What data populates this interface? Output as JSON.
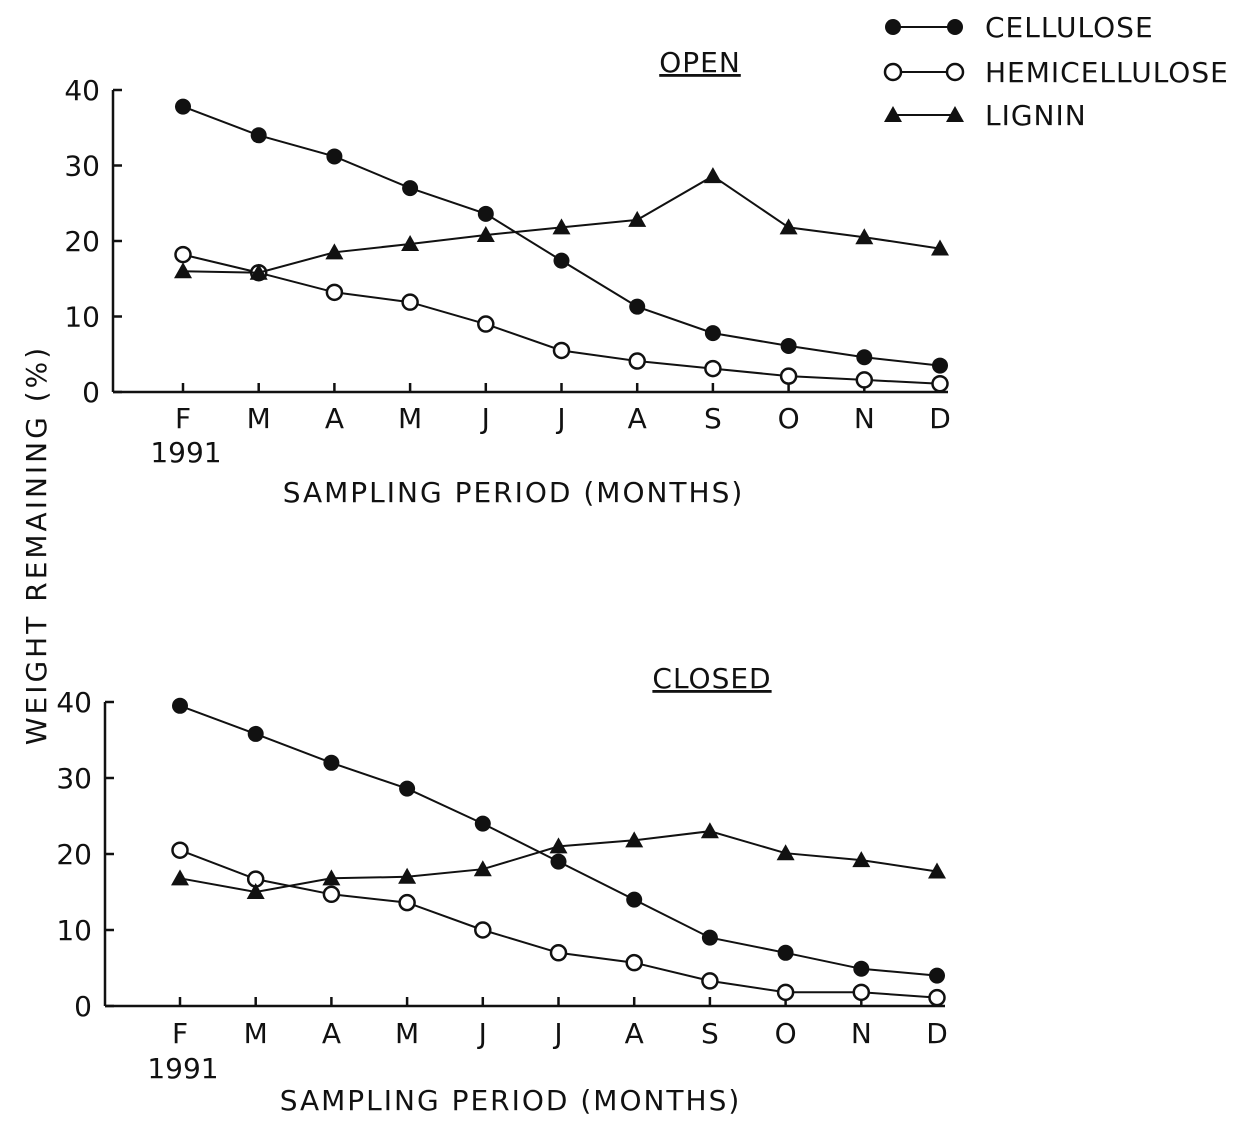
{
  "chart_data": [
    {
      "type": "line",
      "panel_title": "OPEN",
      "categories": [
        "F",
        "M",
        "A",
        "M",
        "J",
        "J",
        "A",
        "S",
        "O",
        "N",
        "D"
      ],
      "year_label": "1991",
      "xlabel": "SAMPLING PERIOD (MONTHS)",
      "ylabel": "WEIGHT REMAINING (%)",
      "ylim": [
        0,
        40
      ],
      "yticks": [
        0,
        10,
        20,
        30,
        40
      ],
      "grid": false,
      "series": [
        {
          "name": "CELLULOSE",
          "marker": "filled-circle",
          "values": [
            37.8,
            34.0,
            31.2,
            27.0,
            23.6,
            17.4,
            11.3,
            7.8,
            6.1,
            4.6,
            3.5
          ]
        },
        {
          "name": "HEMICELLULOSE",
          "marker": "open-circle",
          "values": [
            18.2,
            15.8,
            13.2,
            11.9,
            9.0,
            5.5,
            4.1,
            3.1,
            2.1,
            1.6,
            1.1
          ]
        },
        {
          "name": "LIGNIN",
          "marker": "filled-triangle",
          "values": [
            16.0,
            15.8,
            18.5,
            19.6,
            20.8,
            21.8,
            22.8,
            28.6,
            21.8,
            20.5,
            19.0
          ]
        }
      ]
    },
    {
      "type": "line",
      "panel_title": "CLOSED",
      "categories": [
        "F",
        "M",
        "A",
        "M",
        "J",
        "J",
        "A",
        "S",
        "O",
        "N",
        "D"
      ],
      "year_label": "1991",
      "xlabel": "SAMPLING PERIOD (MONTHS)",
      "ylim": [
        0,
        40
      ],
      "yticks": [
        0,
        10,
        20,
        30,
        40
      ],
      "grid": false,
      "series": [
        {
          "name": "CELLULOSE",
          "marker": "filled-circle",
          "values": [
            39.5,
            35.8,
            32.0,
            28.6,
            24.0,
            19.0,
            14.0,
            9.0,
            7.0,
            4.9,
            4.0
          ]
        },
        {
          "name": "HEMICELLULOSE",
          "marker": "open-circle",
          "values": [
            20.5,
            16.7,
            14.7,
            13.6,
            10.0,
            7.0,
            5.7,
            3.3,
            1.8,
            1.8,
            1.1
          ]
        },
        {
          "name": "LIGNIN",
          "marker": "filled-triangle",
          "values": [
            16.8,
            15.0,
            16.8,
            17.0,
            18.0,
            21.0,
            21.8,
            23.0,
            20.1,
            19.2,
            17.7
          ]
        }
      ]
    }
  ],
  "legend": {
    "position": "top-right",
    "items": [
      {
        "label": "CELLULOSE",
        "marker": "filled-circle"
      },
      {
        "label": "HEMICELLULOSE",
        "marker": "open-circle"
      },
      {
        "label": "LIGNIN",
        "marker": "filled-triangle"
      }
    ]
  },
  "colors": {
    "ink": "#111111",
    "background": "#ffffff"
  }
}
